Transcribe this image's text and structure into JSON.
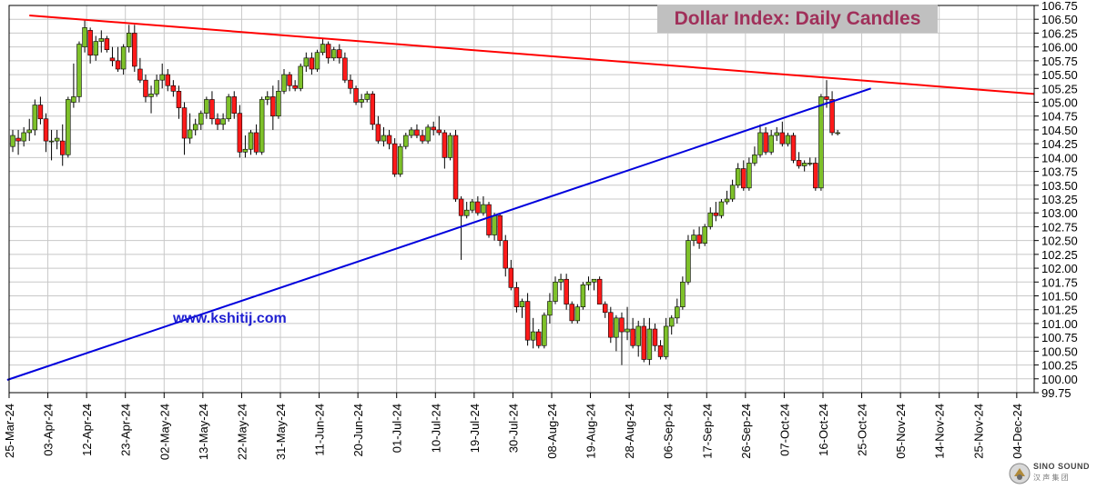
{
  "chart_data": {
    "type": "candlestick",
    "title": "Dollar Index:  Daily Candles",
    "watermark_text": "www.kshitij.com",
    "logo_text": "SINO SOUND",
    "logo_subtext": "汉 声 集 团",
    "ylim": [
      99.75,
      106.75
    ],
    "yticks": [
      "99.75",
      "100.00",
      "100.25",
      "100.50",
      "100.75",
      "101.00",
      "101.25",
      "101.50",
      "101.75",
      "102.00",
      "102.25",
      "102.50",
      "102.75",
      "103.00",
      "103.25",
      "103.50",
      "103.75",
      "104.00",
      "104.25",
      "104.50",
      "104.75",
      "105.00",
      "105.25",
      "105.50",
      "105.75",
      "106.00",
      "106.25",
      "106.50",
      "106.75"
    ],
    "xticks": [
      "25-Mar-24",
      "03-Apr-24",
      "12-Apr-24",
      "23-Apr-24",
      "02-May-24",
      "13-May-24",
      "22-May-24",
      "31-May-24",
      "11-Jun-24",
      "20-Jun-24",
      "01-Jul-24",
      "10-Jul-24",
      "19-Jul-24",
      "30-Jul-24",
      "08-Aug-24",
      "19-Aug-24",
      "28-Aug-24",
      "06-Sep-24",
      "17-Sep-24",
      "26-Sep-24",
      "07-Oct-24",
      "16-Oct-24",
      "25-Oct-24",
      "05-Nov-24",
      "14-Nov-24",
      "25-Nov-24",
      "04-Dec-24"
    ],
    "candles": [
      [
        104.2,
        104.5,
        104.1,
        104.4
      ],
      [
        104.35,
        104.5,
        104.05,
        104.3
      ],
      [
        104.3,
        104.55,
        104.2,
        104.45
      ],
      [
        104.45,
        104.7,
        104.3,
        104.5
      ],
      [
        104.5,
        105.05,
        104.4,
        104.95
      ],
      [
        104.95,
        105.1,
        104.6,
        104.7
      ],
      [
        104.7,
        104.8,
        104.1,
        104.3
      ],
      [
        104.3,
        104.5,
        103.95,
        104.3
      ],
      [
        104.3,
        104.5,
        104.15,
        104.35
      ],
      [
        104.3,
        104.6,
        103.85,
        104.05
      ],
      [
        104.05,
        105.1,
        104.0,
        105.05
      ],
      [
        105.0,
        105.7,
        104.9,
        105.1
      ],
      [
        105.1,
        106.1,
        105.0,
        106.05
      ],
      [
        106.0,
        106.5,
        105.9,
        106.35
      ],
      [
        106.3,
        106.35,
        105.7,
        105.85
      ],
      [
        105.85,
        106.2,
        105.75,
        106.1
      ],
      [
        106.1,
        106.3,
        105.9,
        106.15
      ],
      [
        106.15,
        106.2,
        105.9,
        105.95
      ],
      [
        105.8,
        106.0,
        105.65,
        105.75
      ],
      [
        105.75,
        106.0,
        105.55,
        105.6
      ],
      [
        105.6,
        106.05,
        105.5,
        106.0
      ],
      [
        106.0,
        106.4,
        105.9,
        106.25
      ],
      [
        106.25,
        106.4,
        105.55,
        105.65
      ],
      [
        105.6,
        105.8,
        105.35,
        105.4
      ],
      [
        105.4,
        105.5,
        105.0,
        105.1
      ],
      [
        105.1,
        105.3,
        104.8,
        105.15
      ],
      [
        105.15,
        105.5,
        105.1,
        105.4
      ],
      [
        105.4,
        105.7,
        105.25,
        105.5
      ],
      [
        105.5,
        105.6,
        105.2,
        105.3
      ],
      [
        105.3,
        105.4,
        105.1,
        105.2
      ],
      [
        105.2,
        105.3,
        104.7,
        104.9
      ],
      [
        104.9,
        105.0,
        104.05,
        104.35
      ],
      [
        104.35,
        104.8,
        104.25,
        104.5
      ],
      [
        104.5,
        104.7,
        104.4,
        104.6
      ],
      [
        104.6,
        104.85,
        104.5,
        104.8
      ],
      [
        104.8,
        105.1,
        104.7,
        105.05
      ],
      [
        105.05,
        105.2,
        104.6,
        104.7
      ],
      [
        104.7,
        104.8,
        104.5,
        104.6
      ],
      [
        104.6,
        104.8,
        104.5,
        104.7
      ],
      [
        104.7,
        105.15,
        104.65,
        105.1
      ],
      [
        105.1,
        105.2,
        104.7,
        104.8
      ],
      [
        104.8,
        104.95,
        104.0,
        104.1
      ],
      [
        104.1,
        104.4,
        104.0,
        104.15
      ],
      [
        104.15,
        104.5,
        104.05,
        104.45
      ],
      [
        104.45,
        104.6,
        104.05,
        104.1
      ],
      [
        104.1,
        105.1,
        104.05,
        105.05
      ],
      [
        105.05,
        105.2,
        104.95,
        105.1
      ],
      [
        105.1,
        105.3,
        104.5,
        104.75
      ],
      [
        104.75,
        105.4,
        104.7,
        105.2
      ],
      [
        105.2,
        105.6,
        105.15,
        105.5
      ],
      [
        105.5,
        105.55,
        105.2,
        105.3
      ],
      [
        105.3,
        105.4,
        105.2,
        105.25
      ],
      [
        105.25,
        105.7,
        105.2,
        105.65
      ],
      [
        105.65,
        105.9,
        105.55,
        105.8
      ],
      [
        105.8,
        105.9,
        105.5,
        105.6
      ],
      [
        105.6,
        105.95,
        105.55,
        105.9
      ],
      [
        105.9,
        106.15,
        105.85,
        106.05
      ],
      [
        106.05,
        106.1,
        105.7,
        105.8
      ],
      [
        105.8,
        106.0,
        105.75,
        105.95
      ],
      [
        105.95,
        106.05,
        105.7,
        105.8
      ],
      [
        105.8,
        105.9,
        105.35,
        105.4
      ],
      [
        105.4,
        105.5,
        105.15,
        105.25
      ],
      [
        105.25,
        105.3,
        104.95,
        105.0
      ],
      [
        105.0,
        105.15,
        104.9,
        105.05
      ],
      [
        105.05,
        105.2,
        105.0,
        105.15
      ],
      [
        105.15,
        105.2,
        104.5,
        104.6
      ],
      [
        104.6,
        104.75,
        104.25,
        104.3
      ],
      [
        104.3,
        104.55,
        104.2,
        104.4
      ],
      [
        104.4,
        104.5,
        104.15,
        104.25
      ],
      [
        104.25,
        104.35,
        103.65,
        103.7
      ],
      [
        103.7,
        104.25,
        103.65,
        104.2
      ],
      [
        104.2,
        104.45,
        104.15,
        104.4
      ],
      [
        104.4,
        104.55,
        104.35,
        104.5
      ],
      [
        104.5,
        104.6,
        104.35,
        104.4
      ],
      [
        104.4,
        104.5,
        104.25,
        104.3
      ],
      [
        104.3,
        104.6,
        104.25,
        104.55
      ],
      [
        104.55,
        104.65,
        104.4,
        104.5
      ],
      [
        104.5,
        104.75,
        104.4,
        104.45
      ],
      [
        104.45,
        104.5,
        103.8,
        104.0
      ],
      [
        104.0,
        104.45,
        103.95,
        104.4
      ],
      [
        104.4,
        104.5,
        103.2,
        103.25
      ],
      [
        103.25,
        103.3,
        102.15,
        102.95
      ],
      [
        102.95,
        103.2,
        102.9,
        103.05
      ],
      [
        103.05,
        103.25,
        103.0,
        103.2
      ],
      [
        103.2,
        103.3,
        102.95,
        103.0
      ],
      [
        103.0,
        103.3,
        102.95,
        103.15
      ],
      [
        103.15,
        103.2,
        102.55,
        102.6
      ],
      [
        102.6,
        103.0,
        102.5,
        102.95
      ],
      [
        102.95,
        103.0,
        102.4,
        102.5
      ],
      [
        102.5,
        102.6,
        101.85,
        102.0
      ],
      [
        102.0,
        102.15,
        101.6,
        101.65
      ],
      [
        101.65,
        101.75,
        101.2,
        101.3
      ],
      [
        101.3,
        101.45,
        101.1,
        101.4
      ],
      [
        101.4,
        101.55,
        100.6,
        100.7
      ],
      [
        100.7,
        101.1,
        100.55,
        100.85
      ],
      [
        100.85,
        100.9,
        100.55,
        100.6
      ],
      [
        100.6,
        101.2,
        100.55,
        101.15
      ],
      [
        101.15,
        101.55,
        101.0,
        101.4
      ],
      [
        101.4,
        101.85,
        101.35,
        101.75
      ],
      [
        101.75,
        101.9,
        101.6,
        101.8
      ],
      [
        101.8,
        101.9,
        101.25,
        101.35
      ],
      [
        101.35,
        101.4,
        101.0,
        101.05
      ],
      [
        101.05,
        101.35,
        101.0,
        101.3
      ],
      [
        101.3,
        101.75,
        101.25,
        101.7
      ],
      [
        101.7,
        101.85,
        101.6,
        101.75
      ],
      [
        101.75,
        101.8,
        101.6,
        101.8
      ],
      [
        101.8,
        101.85,
        101.35,
        101.35
      ],
      [
        101.35,
        101.4,
        101.1,
        101.2
      ],
      [
        101.2,
        101.3,
        100.65,
        100.75
      ],
      [
        100.75,
        101.15,
        100.5,
        101.1
      ],
      [
        101.1,
        101.2,
        100.25,
        100.85
      ],
      [
        100.85,
        101.3,
        100.7,
        100.9
      ],
      [
        100.9,
        101.1,
        100.55,
        100.6
      ],
      [
        100.6,
        101.05,
        100.4,
        100.95
      ],
      [
        100.95,
        101.1,
        100.3,
        100.35
      ],
      [
        100.35,
        101.1,
        100.25,
        100.9
      ],
      [
        100.9,
        101.0,
        100.5,
        100.6
      ],
      [
        100.6,
        100.7,
        100.35,
        100.4
      ],
      [
        100.4,
        101.1,
        100.35,
        100.95
      ],
      [
        100.95,
        101.15,
        100.8,
        101.1
      ],
      [
        101.1,
        101.45,
        101.0,
        101.3
      ],
      [
        101.3,
        101.85,
        101.25,
        101.75
      ],
      [
        101.75,
        102.6,
        101.7,
        102.5
      ],
      [
        102.5,
        102.7,
        102.4,
        102.6
      ],
      [
        102.6,
        102.75,
        102.35,
        102.45
      ],
      [
        102.45,
        102.8,
        102.4,
        102.75
      ],
      [
        102.75,
        103.1,
        102.7,
        103.0
      ],
      [
        103.0,
        103.2,
        102.85,
        102.95
      ],
      [
        102.95,
        103.25,
        102.9,
        103.2
      ],
      [
        103.2,
        103.4,
        103.15,
        103.25
      ],
      [
        103.25,
        103.6,
        103.2,
        103.5
      ],
      [
        103.5,
        103.9,
        103.45,
        103.8
      ],
      [
        103.8,
        103.95,
        103.4,
        103.45
      ],
      [
        103.45,
        104.0,
        103.4,
        103.9
      ],
      [
        103.9,
        104.2,
        103.85,
        104.05
      ],
      [
        104.05,
        104.6,
        104.0,
        104.45
      ],
      [
        104.45,
        104.55,
        104.05,
        104.1
      ],
      [
        104.1,
        104.5,
        104.05,
        104.4
      ],
      [
        104.4,
        104.55,
        104.3,
        104.45
      ],
      [
        104.45,
        104.65,
        104.2,
        104.25
      ],
      [
        104.25,
        104.45,
        104.2,
        104.4
      ],
      [
        104.4,
        104.45,
        103.9,
        103.95
      ],
      [
        103.95,
        104.1,
        103.8,
        103.85
      ],
      [
        103.85,
        103.95,
        103.75,
        103.9
      ],
      [
        103.9,
        104.0,
        103.85,
        103.9
      ],
      [
        103.9,
        104.0,
        103.4,
        103.45
      ],
      [
        103.45,
        105.15,
        103.4,
        105.1
      ],
      [
        105.1,
        105.4,
        104.9,
        105.05
      ],
      [
        105.05,
        105.2,
        104.4,
        104.45
      ],
      [
        104.45,
        104.5,
        104.4,
        104.45
      ]
    ],
    "trendlines": [
      {
        "color": "#ff0000",
        "from": [
          3,
          106.57
        ],
        "to": [
          null,
          105.15
        ]
      },
      {
        "color": "#0000dd",
        "from": [
          -1,
          99.98
        ],
        "to": [
          null,
          105.25
        ]
      }
    ]
  }
}
